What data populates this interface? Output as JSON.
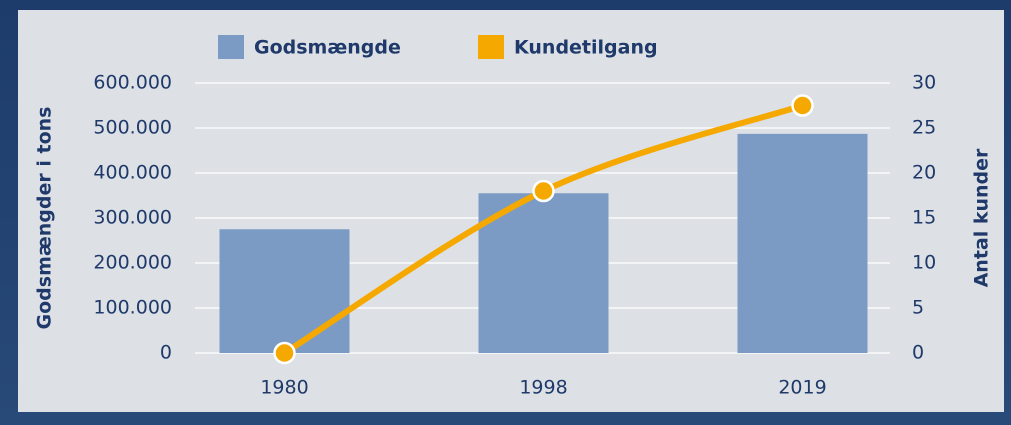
{
  "chart_data": {
    "type": "bar-line",
    "categories": [
      "1980",
      "1998",
      "2019"
    ],
    "series": [
      {
        "name": "Godsmængde",
        "color": "#7b9bc4",
        "values": [
          275000,
          355000,
          487000
        ]
      },
      {
        "name": "Kundetilgang",
        "color": "#f5a800",
        "values": [
          0,
          18,
          27.5
        ],
        "axis": "y2"
      }
    ],
    "ylabel": "Godsmængder i tons",
    "y2label": "Antal kunder",
    "ylim": [
      0,
      600000
    ],
    "yticks": [
      0,
      {
        "value": 100000,
        "label": "100.000"
      },
      {
        "value": 200000,
        "label": "200.000"
      },
      {
        "value": 300000,
        "label": "300.000"
      },
      {
        "value": 400000,
        "label": "400.000"
      },
      {
        "value": 500000,
        "label": "500.000"
      },
      {
        "value": 600000,
        "label": "600.000"
      }
    ],
    "y2lim": [
      0,
      30
    ],
    "y2ticks": [
      0,
      5,
      10,
      15,
      20,
      25,
      30
    ],
    "grid": true
  }
}
